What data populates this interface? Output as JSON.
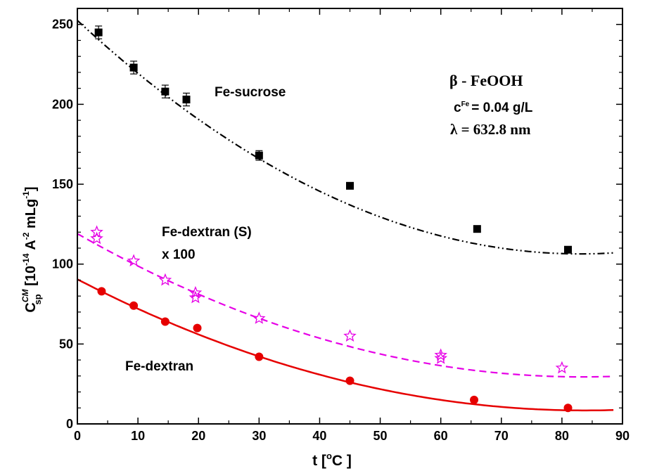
{
  "chart_data": {
    "type": "scatter",
    "xlim": [
      0,
      90
    ],
    "ylim": [
      0,
      260
    ],
    "x_ticks": [
      0,
      10,
      20,
      30,
      40,
      50,
      60,
      70,
      80,
      90
    ],
    "y_ticks": [
      0,
      50,
      100,
      150,
      200,
      250
    ],
    "xlabel": {
      "main": "t [",
      "sup": "o",
      "unit": "C ]"
    },
    "ylabel": {
      "main": "C",
      "sup": "CM",
      "sub": "sp",
      "rest1": " [10",
      "sup2": "-14",
      "rest2": " A",
      "sup3": "-2",
      "rest3": " mLg",
      "sup4": "-1",
      "rest4": "]"
    },
    "grid": false,
    "annotations": {
      "sucrose_label": "Fe-sucrose",
      "dextran_s_label": "Fe-dextran (S)",
      "dextran_s_scale": "x 100",
      "dextran_label": "Fe-dextran",
      "material": "β - FeOOH",
      "concentration_prefix": "c",
      "concentration_sup": "Fe",
      "concentration_value": "=  0.04 g/L",
      "wavelength": "λ = 632.8 nm"
    },
    "series": [
      {
        "marker": "square",
        "color": "#000000",
        "points": [
          {
            "x": 3.5,
            "y": 245,
            "err": 4
          },
          {
            "x": 9.3,
            "y": 223,
            "err": 4
          },
          {
            "x": 14.5,
            "y": 208,
            "err": 4
          },
          {
            "x": 18,
            "y": 203,
            "err": 4
          },
          {
            "x": 30,
            "y": 168,
            "err": 3
          },
          {
            "x": 45,
            "y": 149,
            "err": 2
          },
          {
            "x": 66,
            "y": 122,
            "err": 0
          },
          {
            "x": 81,
            "y": 109,
            "err": 0
          }
        ],
        "fit": {
          "style": "dash-dot-dot",
          "coeffs": [
            252.5,
            -3.52,
            0.0212
          ],
          "x_range": [
            0,
            88.5
          ]
        }
      },
      {
        "marker": "star-open",
        "color": "#e600e6",
        "points": [
          {
            "x": 3.2,
            "y": 116
          },
          {
            "x": 3.2,
            "y": 120
          },
          {
            "x": 9.3,
            "y": 102
          },
          {
            "x": 14.5,
            "y": 90
          },
          {
            "x": 19.5,
            "y": 82
          },
          {
            "x": 19.5,
            "y": 79
          },
          {
            "x": 30,
            "y": 66
          },
          {
            "x": 45,
            "y": 55
          },
          {
            "x": 60,
            "y": 43
          },
          {
            "x": 60,
            "y": 41
          },
          {
            "x": 80,
            "y": 35
          }
        ],
        "fit": {
          "style": "dashed",
          "coeffs": [
            119,
            -2.15,
            0.0129
          ],
          "x_range": [
            0,
            88.5
          ]
        }
      },
      {
        "marker": "circle",
        "color": "#e60000",
        "points": [
          {
            "x": 4,
            "y": 83
          },
          {
            "x": 9.3,
            "y": 74
          },
          {
            "x": 14.5,
            "y": 64
          },
          {
            "x": 19.8,
            "y": 60
          },
          {
            "x": 30,
            "y": 42
          },
          {
            "x": 45,
            "y": 27
          },
          {
            "x": 65.5,
            "y": 15
          },
          {
            "x": 81,
            "y": 10
          }
        ],
        "fit": {
          "style": "solid",
          "coeffs": [
            90.5,
            -1.96,
            0.0117
          ],
          "x_range": [
            0,
            88.5
          ]
        }
      }
    ]
  }
}
